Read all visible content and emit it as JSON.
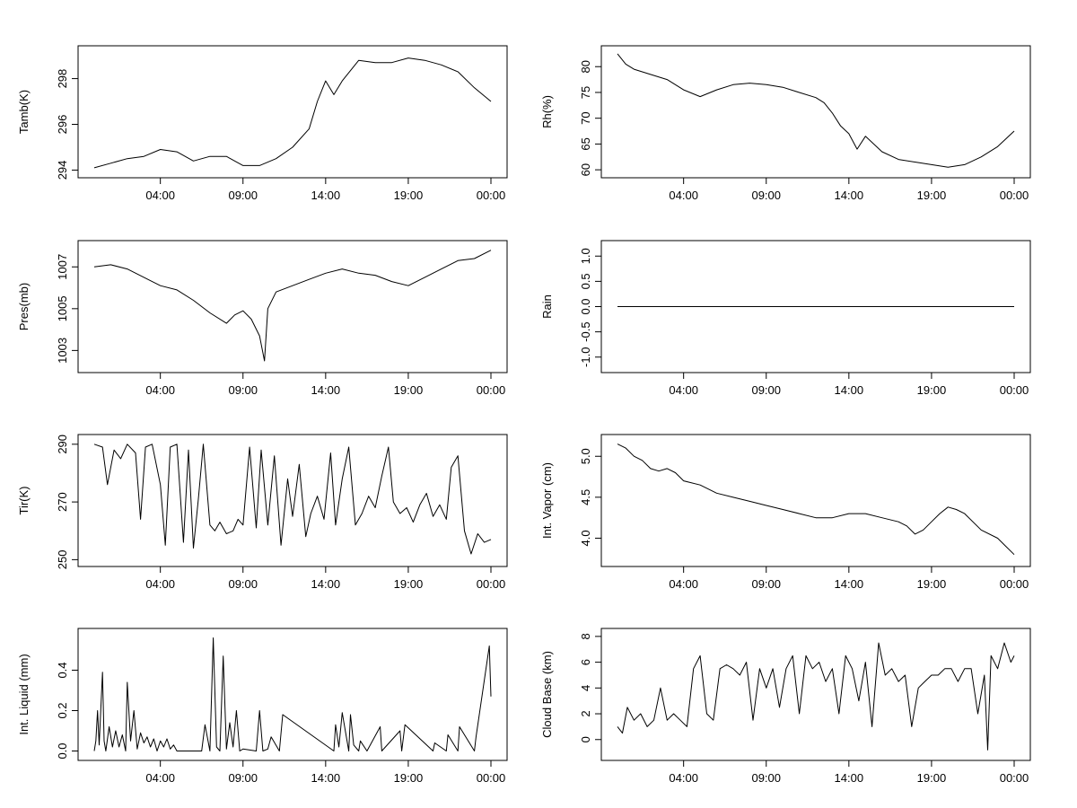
{
  "chart_data": [
    {
      "type": "line",
      "ylabel": "Tamb(K)",
      "ylim": [
        293.9,
        299.2
      ],
      "yticks": [
        "294",
        "296",
        "298"
      ],
      "xticks": [
        "04:00",
        "09:00",
        "14:00",
        "19:00",
        "00:00"
      ],
      "xlim_hours": [
        0,
        24
      ],
      "series": [
        {
          "x_hours": [
            0,
            1,
            2,
            3,
            4,
            5,
            6,
            7,
            8,
            9,
            10,
            11,
            12,
            13,
            13.5,
            14,
            14.5,
            15,
            16,
            17,
            18,
            19,
            20,
            21,
            22,
            23,
            24
          ],
          "values": [
            294.1,
            294.3,
            294.5,
            294.6,
            294.9,
            294.8,
            294.4,
            294.6,
            294.6,
            294.2,
            294.2,
            294.5,
            295.0,
            295.8,
            297.0,
            297.9,
            297.3,
            297.9,
            298.8,
            298.7,
            298.7,
            298.9,
            298.8,
            298.6,
            298.3,
            297.6,
            297.0
          ]
        }
      ]
    },
    {
      "type": "line",
      "ylabel": "Rh(%)",
      "ylim": [
        59.5,
        83
      ],
      "yticks": [
        "60",
        "65",
        "70",
        "75",
        "80"
      ],
      "xticks": [
        "04:00",
        "09:00",
        "14:00",
        "19:00",
        "00:00"
      ],
      "xlim_hours": [
        0,
        24
      ],
      "series": [
        {
          "x_hours": [
            0,
            0.5,
            1,
            2,
            3,
            4,
            5,
            6,
            7,
            8,
            9,
            10,
            11,
            12,
            12.5,
            13,
            13.5,
            14,
            14.5,
            15,
            16,
            17,
            18,
            19,
            20,
            21,
            22,
            23,
            24
          ],
          "values": [
            82.5,
            80.5,
            79.5,
            78.5,
            77.5,
            75.5,
            74.2,
            75.5,
            76.5,
            76.8,
            76.5,
            76.0,
            75.0,
            74.0,
            73.0,
            71.0,
            68.5,
            67.0,
            64.0,
            66.5,
            63.5,
            62.0,
            61.5,
            61.0,
            60.5,
            61.0,
            62.5,
            64.5,
            67.5
          ]
        }
      ]
    },
    {
      "type": "line",
      "ylabel": "Pres(mb)",
      "ylim": [
        1002.2,
        1008.0
      ],
      "yticks": [
        "1003",
        "1005",
        "1007"
      ],
      "xticks": [
        "04:00",
        "09:00",
        "14:00",
        "19:00",
        "00:00"
      ],
      "xlim_hours": [
        0,
        24
      ],
      "series": [
        {
          "x_hours": [
            0,
            1,
            2,
            3,
            3.5,
            4,
            5,
            6,
            7,
            8,
            8.5,
            9,
            9.5,
            10,
            10.3,
            10.5,
            11,
            12,
            13,
            14,
            15,
            16,
            17,
            18,
            19,
            20,
            21,
            22,
            23,
            24
          ],
          "values": [
            1007.0,
            1007.1,
            1006.9,
            1006.5,
            1006.3,
            1006.1,
            1005.9,
            1005.4,
            1004.8,
            1004.3,
            1004.7,
            1004.9,
            1004.5,
            1003.7,
            1002.5,
            1005.0,
            1005.8,
            1006.1,
            1006.4,
            1006.7,
            1006.9,
            1006.7,
            1006.6,
            1006.3,
            1006.1,
            1006.5,
            1006.9,
            1007.3,
            1007.4,
            1007.8
          ]
        }
      ]
    },
    {
      "type": "line",
      "ylabel": "Rain",
      "ylim": [
        -1.2,
        1.2
      ],
      "yticks": [
        "-1.0",
        "-0.5",
        "0.0",
        "0.5",
        "1.0"
      ],
      "xticks": [
        "04:00",
        "09:00",
        "14:00",
        "19:00",
        "00:00"
      ],
      "xlim_hours": [
        0,
        24
      ],
      "series": [
        {
          "x_hours": [
            0,
            24
          ],
          "values": [
            0,
            0
          ]
        }
      ]
    },
    {
      "type": "line",
      "ylabel": "Tir(K)",
      "ylim": [
        249.5,
        291.5
      ],
      "yticks": [
        "250",
        "270",
        "290"
      ],
      "xticks": [
        "04:00",
        "09:00",
        "14:00",
        "19:00",
        "00:00"
      ],
      "xlim_hours": [
        0,
        24
      ],
      "series": [
        {
          "x_hours": [
            0,
            0.5,
            0.8,
            1.2,
            1.6,
            2,
            2.5,
            2.8,
            3.1,
            3.5,
            4,
            4.3,
            4.6,
            5,
            5.4,
            5.7,
            6,
            6.3,
            6.6,
            7,
            7.3,
            7.6,
            8,
            8.4,
            8.7,
            9,
            9.4,
            9.8,
            10.1,
            10.5,
            10.9,
            11.3,
            11.7,
            12,
            12.4,
            12.8,
            13.1,
            13.5,
            13.9,
            14.3,
            14.6,
            15,
            15.4,
            15.8,
            16.2,
            16.6,
            17,
            17.4,
            17.8,
            18.1,
            18.5,
            18.9,
            19.3,
            19.7,
            20.1,
            20.5,
            20.9,
            21.3,
            21.6,
            22,
            22.4,
            22.8,
            23.2,
            23.6,
            24
          ],
          "values": [
            290,
            289,
            276,
            288,
            285,
            290,
            287,
            264,
            289,
            290,
            276,
            255,
            289,
            290,
            256,
            288,
            254,
            271,
            290,
            262,
            260,
            263,
            259,
            260,
            264,
            262,
            289,
            261,
            288,
            262,
            286,
            255,
            278,
            265,
            283,
            258,
            266,
            272,
            264,
            287,
            262,
            278,
            289,
            262,
            266,
            272,
            268,
            279,
            289,
            270,
            266,
            268,
            263,
            269,
            273,
            265,
            269,
            264,
            282,
            286,
            260,
            252,
            259,
            256,
            257
          ]
        }
      ]
    },
    {
      "type": "line",
      "ylabel": "Int. Vapor (cm)",
      "ylim": [
        3.72,
        5.2
      ],
      "yticks": [
        "4.0",
        "4.5",
        "5.0"
      ],
      "xticks": [
        "04:00",
        "09:00",
        "14:00",
        "19:00",
        "00:00"
      ],
      "xlim_hours": [
        0,
        24
      ],
      "series": [
        {
          "x_hours": [
            0,
            0.5,
            1,
            1.5,
            2,
            2.5,
            3,
            3.5,
            4,
            5,
            6,
            7,
            8,
            9,
            10,
            11,
            12,
            13,
            14,
            15,
            16,
            17,
            17.5,
            18,
            18.5,
            19,
            19.5,
            20,
            20.5,
            21,
            22,
            23,
            23.5,
            24
          ],
          "values": [
            5.15,
            5.1,
            5.0,
            4.95,
            4.85,
            4.82,
            4.85,
            4.8,
            4.7,
            4.65,
            4.55,
            4.5,
            4.45,
            4.4,
            4.35,
            4.3,
            4.25,
            4.25,
            4.3,
            4.3,
            4.25,
            4.2,
            4.15,
            4.05,
            4.1,
            4.2,
            4.3,
            4.38,
            4.35,
            4.3,
            4.1,
            4.0,
            3.9,
            3.8
          ]
        }
      ]
    },
    {
      "type": "line",
      "ylabel": "Int. Liquid (mm)",
      "ylim": [
        -0.02,
        0.58
      ],
      "yticks": [
        "0.0",
        "0.2",
        "0.4"
      ],
      "xticks": [
        "04:00",
        "09:00",
        "14:00",
        "19:00",
        "00:00"
      ],
      "xlim_hours": [
        0,
        24
      ],
      "series": [
        {
          "x_hours": [
            0,
            0.1,
            0.2,
            0.3,
            0.5,
            0.6,
            0.7,
            0.9,
            1.1,
            1.3,
            1.5,
            1.7,
            1.9,
            2.0,
            2.2,
            2.4,
            2.6,
            2.8,
            3.0,
            3.2,
            3.4,
            3.6,
            3.8,
            4.0,
            4.2,
            4.4,
            4.6,
            4.8,
            5.0,
            6.5,
            6.7,
            7.0,
            7.2,
            7.4,
            7.6,
            7.8,
            8.0,
            8.2,
            8.4,
            8.6,
            8.8,
            9.0,
            9.8,
            10.0,
            10.2,
            10.5,
            10.7,
            11.2,
            11.4,
            14.5,
            14.6,
            14.8,
            15.0,
            15.4,
            15.5,
            15.7,
            16.0,
            16.1,
            16.5,
            17.3,
            17.4,
            18.5,
            18.6,
            18.8,
            20.5,
            20.6,
            21.3,
            21.4,
            22.0,
            22.1,
            23.0,
            23.1,
            23.9,
            24.0
          ],
          "values": [
            0.0,
            0.05,
            0.2,
            0.03,
            0.39,
            0.05,
            0.0,
            0.12,
            0.02,
            0.1,
            0.02,
            0.08,
            0.0,
            0.34,
            0.05,
            0.2,
            0.01,
            0.09,
            0.04,
            0.07,
            0.02,
            0.06,
            0.0,
            0.05,
            0.02,
            0.06,
            0.01,
            0.03,
            0.0,
            0.0,
            0.13,
            0.0,
            0.56,
            0.02,
            0.0,
            0.47,
            0.01,
            0.14,
            0.02,
            0.2,
            0.0,
            0.01,
            0.0,
            0.2,
            0.0,
            0.01,
            0.07,
            0.0,
            0.18,
            0.0,
            0.13,
            0.02,
            0.19,
            0.0,
            0.18,
            0.03,
            0.0,
            0.05,
            0.0,
            0.12,
            0.0,
            0.1,
            0.0,
            0.13,
            0.0,
            0.04,
            0.0,
            0.08,
            0.0,
            0.12,
            0.0,
            0.07,
            0.52,
            0.27
          ]
        }
      ]
    },
    {
      "type": "line",
      "ylabel": "Cloud Base (km)",
      "ylim": [
        -1.2,
        8.2
      ],
      "yticks": [
        "0",
        "2",
        "4",
        "6",
        "8"
      ],
      "xticks": [
        "04:00",
        "09:00",
        "14:00",
        "19:00",
        "00:00"
      ],
      "xlim_hours": [
        0,
        24
      ],
      "series": [
        {
          "x_hours": [
            0,
            0.3,
            0.6,
            1,
            1.4,
            1.8,
            2.2,
            2.6,
            3,
            3.4,
            3.8,
            4.2,
            4.6,
            5,
            5.4,
            5.8,
            6.2,
            6.6,
            7,
            7.4,
            7.8,
            8.2,
            8.6,
            9,
            9.4,
            9.8,
            10.2,
            10.6,
            11,
            11.4,
            11.8,
            12.2,
            12.6,
            13,
            13.4,
            13.8,
            14.2,
            14.6,
            15,
            15.4,
            15.8,
            16.2,
            16.6,
            17,
            17.4,
            17.8,
            18.2,
            18.6,
            19,
            19.4,
            19.8,
            20.2,
            20.6,
            21,
            21.4,
            21.8,
            22.2,
            22.4,
            22.6,
            23,
            23.4,
            23.8,
            24
          ],
          "values": [
            1.0,
            0.5,
            2.5,
            1.5,
            2.0,
            1.0,
            1.5,
            4.0,
            1.5,
            2.0,
            1.5,
            1.0,
            5.5,
            6.5,
            2.0,
            1.5,
            5.5,
            5.8,
            5.5,
            5.0,
            6.0,
            1.5,
            5.5,
            4.0,
            5.5,
            2.5,
            5.5,
            6.5,
            2.0,
            6.5,
            5.5,
            6.0,
            4.5,
            5.5,
            2.0,
            6.5,
            5.5,
            3.0,
            6.0,
            1.0,
            7.5,
            5.0,
            5.5,
            4.5,
            5.0,
            1.0,
            4.0,
            4.5,
            5.0,
            5.0,
            5.5,
            5.5,
            4.5,
            5.5,
            5.5,
            2.0,
            5.0,
            -0.8,
            6.5,
            5.5,
            7.5,
            6.0,
            6.5
          ]
        }
      ]
    }
  ]
}
